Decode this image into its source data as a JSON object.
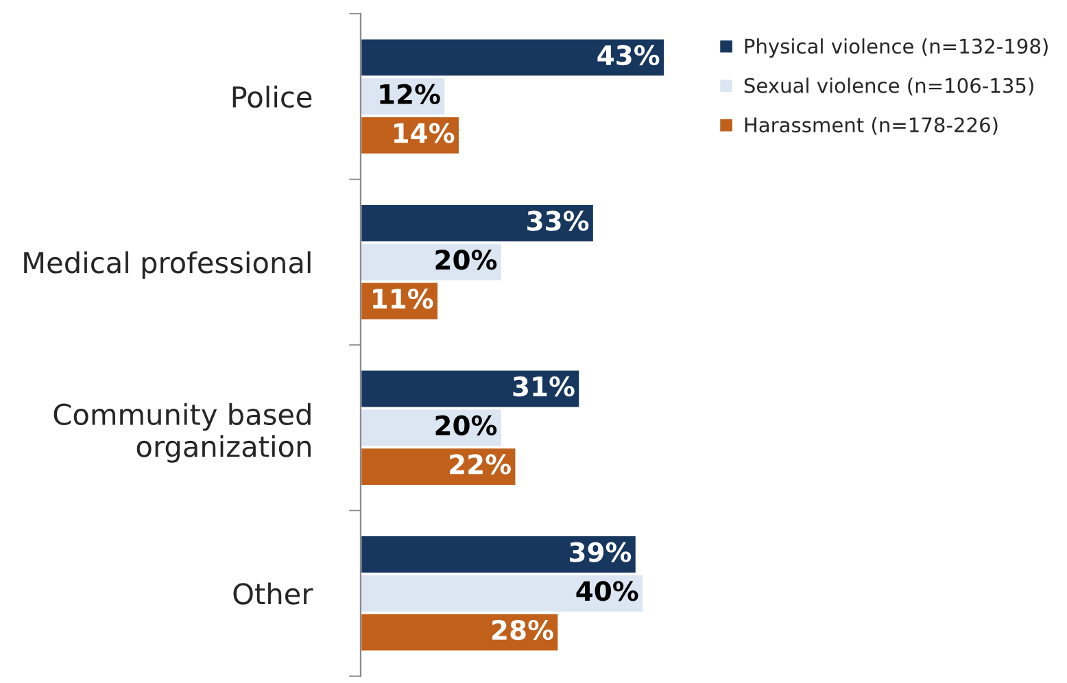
{
  "chart_data": {
    "type": "bar",
    "orientation": "horizontal",
    "categories": [
      "Police",
      "Medical professional",
      "Community based\norganization",
      "Other"
    ],
    "series": [
      {
        "name": "Physical violence (n=132-198)",
        "color": "#17375e",
        "values": [
          43,
          33,
          31,
          39
        ],
        "value_labels": [
          "43%",
          "33%",
          "31%",
          "39%"
        ]
      },
      {
        "name": "Sexual violence (n=106-135)",
        "color": "#dce6f2",
        "values": [
          12,
          20,
          20,
          40
        ],
        "value_labels": [
          "12%",
          "20%",
          "20%",
          "40%"
        ]
      },
      {
        "name": "Harassment (n=178-226)",
        "color": "#c0601a",
        "values": [
          14,
          11,
          22,
          28
        ],
        "value_labels": [
          "14%",
          "11%",
          "22%",
          "28%"
        ]
      }
    ],
    "legend": "top right",
    "grid": false
  }
}
